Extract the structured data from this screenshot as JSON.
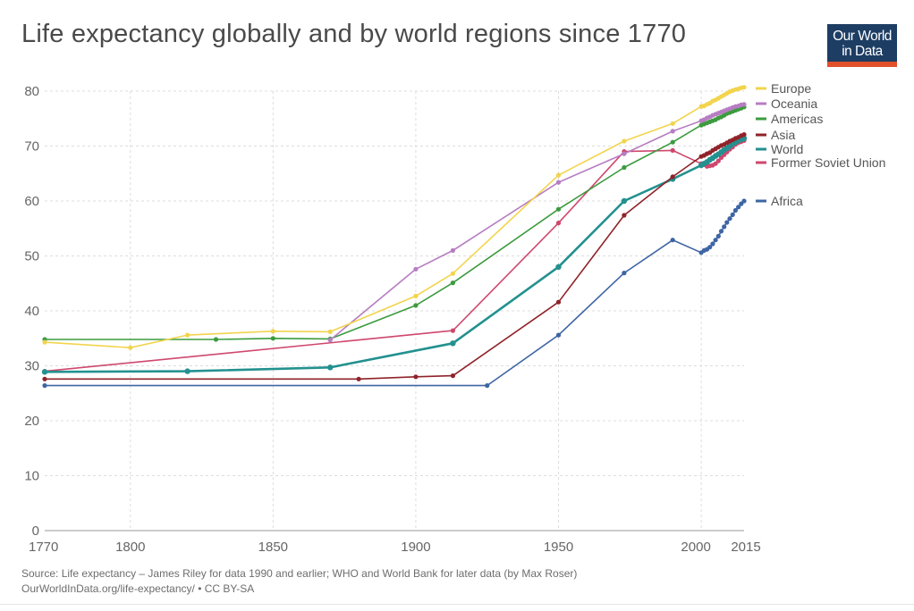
{
  "header": {
    "title": "Life expectancy globally and by world regions since 1770",
    "logo_line1": "Our World",
    "logo_line2": "in Data"
  },
  "footer": {
    "source": "Source: Life expectancy – James Riley for data 1990 and earlier; WHO and World Bank for later data (by Max Roser)",
    "license": "OurWorldInData.org/life-expectancy/ • CC BY-SA"
  },
  "chart_data": {
    "type": "line",
    "title": "Life expectancy globally and by world regions since 1770",
    "xlabel": "",
    "ylabel": "",
    "xlim": [
      1770,
      2015
    ],
    "ylim": [
      0,
      80
    ],
    "x_ticks": [
      1770,
      1800,
      1850,
      1900,
      1950,
      2000,
      2015
    ],
    "y_ticks": [
      0,
      10,
      20,
      30,
      40,
      50,
      60,
      70,
      80
    ],
    "grid": true,
    "legend_position": "right",
    "series": [
      {
        "name": "Europe",
        "color": "#f2d44d",
        "x": [
          1770,
          1800,
          1820,
          1850,
          1870,
          1900,
          1913,
          1950,
          1973,
          1990,
          2000,
          2001,
          2002,
          2003,
          2004,
          2005,
          2006,
          2007,
          2008,
          2009,
          2010,
          2011,
          2012,
          2013,
          2014,
          2015
        ],
        "y": [
          34.3,
          33.3,
          35.6,
          36.3,
          36.2,
          42.7,
          46.8,
          64.7,
          70.9,
          74.1,
          77.2,
          77.3,
          77.6,
          77.8,
          78.2,
          78.4,
          78.7,
          79.0,
          79.3,
          79.6,
          79.9,
          80.1,
          80.3,
          80.4,
          80.6,
          80.7
        ]
      },
      {
        "name": "Oceania",
        "color": "#b77dc2",
        "x": [
          1870,
          1900,
          1913,
          1950,
          1973,
          1990,
          2000,
          2001,
          2002,
          2003,
          2004,
          2005,
          2006,
          2007,
          2008,
          2009,
          2010,
          2011,
          2012,
          2013,
          2014,
          2015
        ],
        "y": [
          34.7,
          47.6,
          51.0,
          63.4,
          68.6,
          72.7,
          74.6,
          74.8,
          75.1,
          75.3,
          75.6,
          75.8,
          76.0,
          76.2,
          76.4,
          76.6,
          76.8,
          77.0,
          77.2,
          77.3,
          77.5,
          77.6
        ]
      },
      {
        "name": "Americas",
        "color": "#3c9b3f",
        "x": [
          1770,
          1830,
          1850,
          1870,
          1900,
          1913,
          1950,
          1973,
          1990,
          2000,
          2001,
          2002,
          2003,
          2004,
          2005,
          2006,
          2007,
          2008,
          2009,
          2010,
          2011,
          2012,
          2013,
          2014,
          2015
        ],
        "y": [
          34.8,
          34.8,
          35.0,
          34.9,
          41.0,
          45.1,
          58.5,
          66.1,
          70.7,
          73.8,
          74.0,
          74.2,
          74.4,
          74.6,
          74.8,
          75.1,
          75.3,
          75.6,
          75.9,
          76.1,
          76.3,
          76.5,
          76.7,
          76.9,
          77.1
        ]
      },
      {
        "name": "Asia",
        "color": "#8f2329",
        "x": [
          1770,
          1880,
          1900,
          1913,
          1950,
          1973,
          1990,
          2000,
          2001,
          2002,
          2003,
          2004,
          2005,
          2006,
          2007,
          2008,
          2009,
          2010,
          2011,
          2012,
          2013,
          2014,
          2015
        ],
        "y": [
          27.6,
          27.6,
          28.0,
          28.2,
          41.6,
          57.4,
          64.4,
          68.1,
          68.3,
          68.6,
          68.8,
          69.2,
          69.5,
          69.8,
          70.1,
          70.3,
          70.6,
          70.9,
          71.1,
          71.4,
          71.6,
          71.9,
          72.1
        ]
      },
      {
        "name": "World",
        "color": "#23918f",
        "x": [
          1770,
          1820,
          1870,
          1913,
          1950,
          1973,
          1990,
          2000,
          2001,
          2002,
          2003,
          2004,
          2005,
          2006,
          2007,
          2008,
          2009,
          2010,
          2011,
          2012,
          2013,
          2014,
          2015
        ],
        "y": [
          28.9,
          29.0,
          29.7,
          34.1,
          48.0,
          60.0,
          64.0,
          66.5,
          66.8,
          67.1,
          67.5,
          67.8,
          68.2,
          68.5,
          68.9,
          69.3,
          69.6,
          70.0,
          70.4,
          70.7,
          71.0,
          71.2,
          71.4
        ]
      },
      {
        "name": "Former Soviet Union",
        "color": "#cf476d",
        "x": [
          1770,
          1913,
          1950,
          1973,
          1990,
          2000,
          2001,
          2002,
          2003,
          2004,
          2005,
          2006,
          2007,
          2008,
          2009,
          2010,
          2011,
          2012,
          2013,
          2014,
          2015
        ],
        "y": [
          29.0,
          36.4,
          56.0,
          69.0,
          69.2,
          66.8,
          66.6,
          66.3,
          66.4,
          66.5,
          66.8,
          67.3,
          67.9,
          68.4,
          68.9,
          69.4,
          69.8,
          70.3,
          70.6,
          70.8,
          71.0
        ]
      },
      {
        "name": "Africa",
        "color": "#3e65a3",
        "x": [
          1770,
          1925,
          1950,
          1973,
          1990,
          2000,
          2001,
          2002,
          2003,
          2004,
          2005,
          2006,
          2007,
          2008,
          2009,
          2010,
          2011,
          2012,
          2013,
          2014,
          2015
        ],
        "y": [
          26.4,
          26.4,
          35.6,
          46.9,
          52.9,
          50.6,
          51.0,
          51.2,
          51.6,
          52.2,
          52.9,
          53.6,
          54.5,
          55.3,
          56.1,
          56.8,
          57.5,
          58.3,
          58.9,
          59.5,
          60.0
        ]
      }
    ]
  }
}
